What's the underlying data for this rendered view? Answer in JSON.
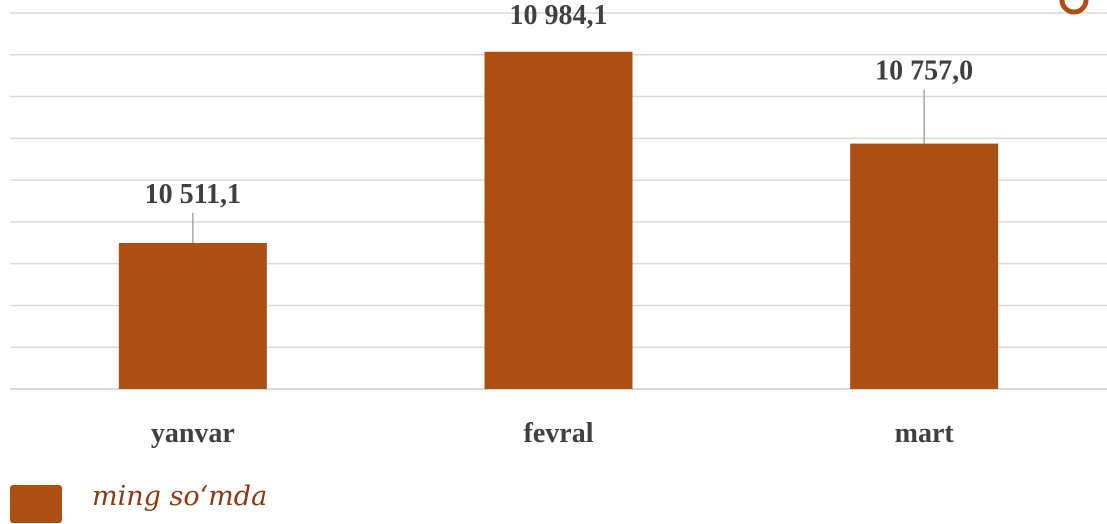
{
  "chart_data": {
    "type": "bar",
    "categories": [
      "yanvar",
      "fevral",
      "mart"
    ],
    "series": [
      {
        "name": "ming so‘mda",
        "values": [
          10511.1,
          10984.1,
          10757.0
        ],
        "labels": [
          "10 511,1",
          "10 984,1",
          "10 757,0"
        ],
        "color": "#ad4e12"
      }
    ],
    "ylim": [
      10150,
      11080
    ],
    "grid": true,
    "legend": "bottom-left",
    "gridline_color": "#d9d9d9",
    "leader_line_color": "#a6a6a6",
    "text_color": "#404040"
  }
}
